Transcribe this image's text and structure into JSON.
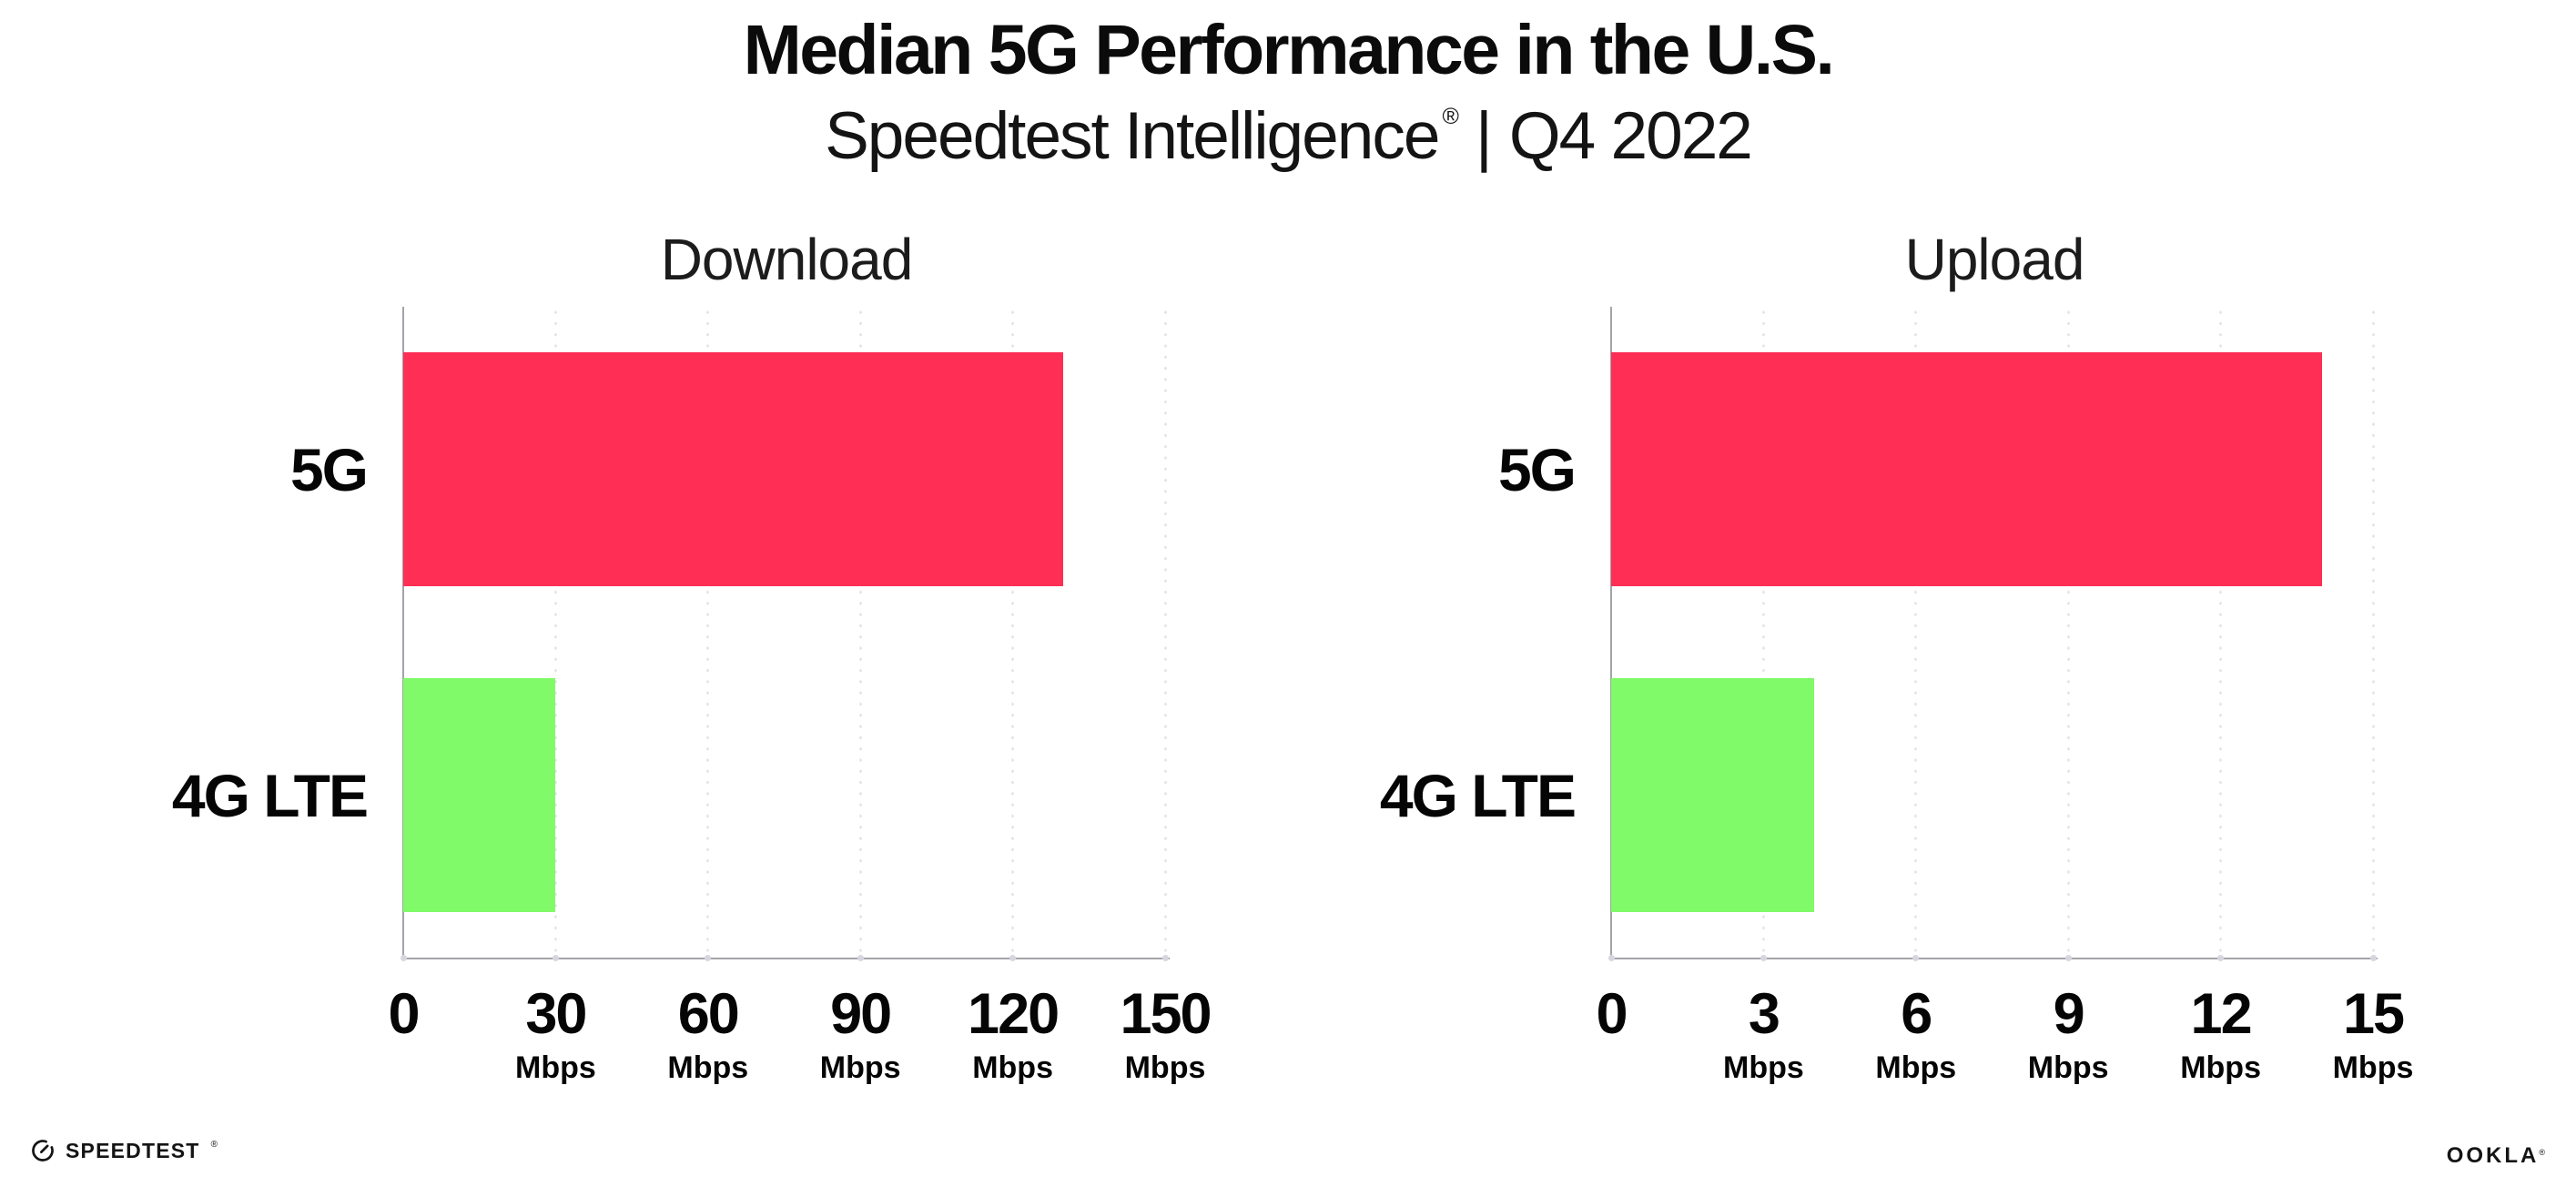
{
  "header": {
    "title": "Median 5G Performance in the U.S.",
    "subtitle_brand": "Speedtest Intelligence",
    "subtitle_registered_mark": "®",
    "subtitle_separator": "|",
    "subtitle_period": "Q4 2022"
  },
  "colors": {
    "bar_5g": "#FE2E55",
    "bar_4g_lte": "#80FA68",
    "axis_line": "#A3A3A8",
    "axis_tick_dot": "#D6D6E0",
    "gridline_dot": "#E3E3ED",
    "text": "#111111"
  },
  "chart_data": [
    {
      "type": "bar",
      "orientation": "horizontal",
      "title": "Download",
      "unit": "Mbps",
      "categories": [
        "5G",
        "4G LTE"
      ],
      "values": [
        130,
        30
      ],
      "xlim": [
        0,
        150
      ],
      "grid": "vertical dotted gridlines at each tick",
      "legend": "none",
      "ticks": [
        {
          "value": 0,
          "label": "0",
          "unit": ""
        },
        {
          "value": 30,
          "label": "30",
          "unit": "Mbps"
        },
        {
          "value": 60,
          "label": "60",
          "unit": "Mbps"
        },
        {
          "value": 90,
          "label": "90",
          "unit": "Mbps"
        },
        {
          "value": 120,
          "label": "120",
          "unit": "Mbps"
        },
        {
          "value": 150,
          "label": "150",
          "unit": "Mbps"
        }
      ]
    },
    {
      "type": "bar",
      "orientation": "horizontal",
      "title": "Upload",
      "unit": "Mbps",
      "categories": [
        "5G",
        "4G LTE"
      ],
      "values": [
        14,
        4
      ],
      "xlim": [
        0,
        15
      ],
      "grid": "vertical dotted gridlines at each tick",
      "legend": "none",
      "ticks": [
        {
          "value": 0,
          "label": "0",
          "unit": ""
        },
        {
          "value": 3,
          "label": "3",
          "unit": "Mbps"
        },
        {
          "value": 6,
          "label": "6",
          "unit": "Mbps"
        },
        {
          "value": 9,
          "label": "9",
          "unit": "Mbps"
        },
        {
          "value": 12,
          "label": "12",
          "unit": "Mbps"
        },
        {
          "value": 15,
          "label": "15",
          "unit": "Mbps"
        }
      ]
    }
  ],
  "footer": {
    "speedtest_logo_text": "SPEEDTEST",
    "speedtest_registered_mark": "®",
    "speedtest_gauge_icon": "speedometer-gauge",
    "ookla_logo_text": "OOKLA",
    "ookla_registered_mark": "®"
  }
}
